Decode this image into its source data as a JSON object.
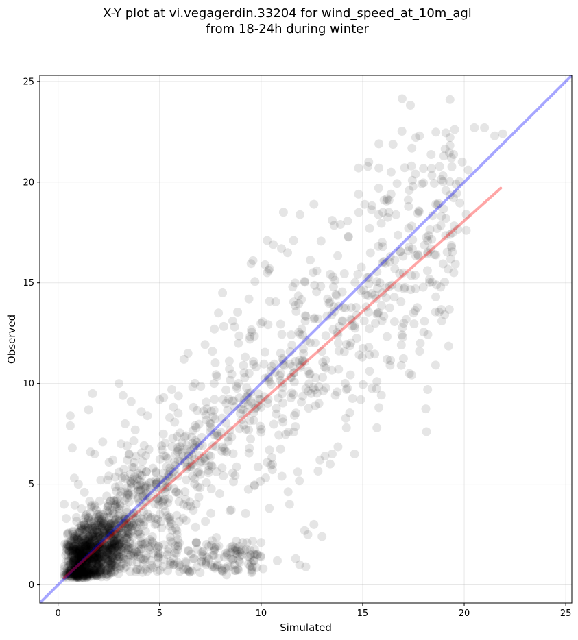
{
  "chart_data": {
    "type": "scatter",
    "title_lines": [
      "X-Y plot at vi.vegagerdin.33204 for wind_speed_at_10m_agl",
      "from 18-24h during winter"
    ],
    "xlabel": "Simulated",
    "ylabel": "Observed",
    "xlim": [
      -0.9,
      25.3
    ],
    "ylim": [
      -0.9,
      25.3
    ],
    "xticks": [
      0,
      5,
      10,
      15,
      20,
      25
    ],
    "yticks": [
      0,
      5,
      10,
      15,
      20,
      25
    ],
    "grid": true,
    "point_color": "#000000",
    "point_alpha": 0.1,
    "reference_line": {
      "name": "1:1",
      "color": "#0000ff",
      "alpha": 0.35,
      "x": [
        -0.9,
        25.3
      ],
      "y": [
        -0.9,
        25.3
      ]
    },
    "fit_line": {
      "name": "fit",
      "color": "#ff0000",
      "alpha": 0.35,
      "x": [
        0.3,
        21.8
      ],
      "y": [
        0.35,
        19.7
      ]
    },
    "points_generated": {
      "count": 2100,
      "x_range": [
        0.3,
        22.3
      ],
      "note": "dense cluster near (1,1.2), spread increasing with x"
    },
    "points": [
      [
        0.6,
        8.4
      ],
      [
        0.6,
        7.9
      ],
      [
        0.7,
        6.8
      ],
      [
        1.7,
        9.5
      ],
      [
        1.5,
        8.7
      ],
      [
        3.0,
        10.0
      ],
      [
        3.2,
        9.4
      ],
      [
        3.6,
        9.1
      ],
      [
        3.3,
        8.0
      ],
      [
        4.1,
        8.6
      ],
      [
        5.2,
        9.3
      ],
      [
        5.6,
        9.7
      ],
      [
        6.2,
        11.2
      ],
      [
        6.4,
        11.5
      ],
      [
        7.6,
        11.6
      ],
      [
        7.7,
        12.7
      ],
      [
        7.9,
        13.5
      ],
      [
        8.1,
        14.5
      ],
      [
        8.6,
        13.1
      ],
      [
        9.4,
        14.2
      ],
      [
        9.6,
        16.1
      ],
      [
        10.3,
        15.5
      ],
      [
        10.3,
        17.1
      ],
      [
        10.6,
        16.9
      ],
      [
        11.0,
        16.7
      ],
      [
        11.1,
        18.5
      ],
      [
        11.6,
        17.1
      ],
      [
        12.6,
        18.9
      ],
      [
        13.5,
        18.1
      ],
      [
        13.9,
        17.9
      ],
      [
        14.3,
        17.3
      ],
      [
        14.8,
        19.4
      ],
      [
        14.8,
        20.7
      ],
      [
        15.3,
        21.0
      ],
      [
        15.8,
        20.7
      ],
      [
        15.8,
        21.9
      ],
      [
        16.0,
        18.5
      ],
      [
        16.3,
        19.1
      ],
      [
        16.4,
        20.5
      ],
      [
        17.6,
        20.4
      ],
      [
        17.4,
        20.8
      ],
      [
        17.8,
        22.3
      ],
      [
        18.6,
        18.9
      ],
      [
        19.0,
        21.3
      ],
      [
        19.1,
        18.2
      ],
      [
        19.3,
        17.4
      ],
      [
        19.3,
        24.1
      ],
      [
        19.6,
        19.9
      ],
      [
        19.9,
        21.0
      ],
      [
        20.1,
        18.4
      ],
      [
        20.1,
        17.6
      ],
      [
        20.2,
        20.6
      ],
      [
        20.5,
        22.7
      ],
      [
        21.0,
        22.7
      ],
      [
        21.5,
        22.3
      ],
      [
        21.9,
        22.4
      ],
      [
        15.3,
        11.8
      ],
      [
        15.7,
        10.1
      ],
      [
        15.7,
        7.8
      ],
      [
        15.8,
        8.8
      ],
      [
        14.6,
        6.5
      ],
      [
        16.2,
        11.2
      ],
      [
        16.9,
        10.9
      ],
      [
        17.3,
        10.5
      ],
      [
        17.5,
        13.5
      ],
      [
        17.6,
        14.7
      ],
      [
        17.8,
        11.6
      ],
      [
        18.2,
        9.7
      ],
      [
        18.6,
        14.3
      ],
      [
        18.9,
        13.1
      ],
      [
        12.3,
        2.5
      ],
      [
        13.0,
        2.4
      ],
      [
        11.7,
        1.3
      ],
      [
        11.9,
        1.0
      ],
      [
        12.2,
        0.9
      ],
      [
        10.1,
        0.8
      ],
      [
        10.8,
        1.2
      ],
      [
        10.4,
        3.8
      ],
      [
        11.4,
        4.0
      ],
      [
        12.6,
        3.0
      ],
      [
        12.9,
        6.2
      ],
      [
        13.4,
        6.0
      ],
      [
        13.5,
        6.5
      ],
      [
        14.2,
        7.8
      ],
      [
        14.2,
        9.7
      ],
      [
        14.9,
        9.2
      ],
      [
        8.7,
        1.0
      ],
      [
        8.9,
        1.2
      ],
      [
        9.2,
        1.7
      ],
      [
        9.3,
        2.1
      ],
      [
        9.8,
        1.5
      ],
      [
        7.7,
        0.9
      ],
      [
        8.3,
        0.5
      ],
      [
        6.6,
        0.7
      ],
      [
        6.3,
        0.8
      ],
      [
        0.3,
        4.0
      ],
      [
        0.4,
        3.3
      ],
      [
        0.8,
        5.3
      ],
      [
        1.0,
        5.0
      ],
      [
        1.3,
        4.6
      ],
      [
        2.1,
        5.2
      ],
      [
        2.5,
        5.4
      ],
      [
        3.0,
        5.6
      ],
      [
        1.8,
        6.5
      ],
      [
        2.2,
        7.1
      ],
      [
        1.6,
        6.6
      ],
      [
        2.7,
        6.2
      ],
      [
        3.1,
        7.0
      ],
      [
        3.4,
        6.9
      ],
      [
        3.5,
        6.5
      ],
      [
        3.8,
        7.7
      ],
      [
        4.4,
        8.4
      ],
      [
        5.0,
        9.2
      ]
    ]
  }
}
